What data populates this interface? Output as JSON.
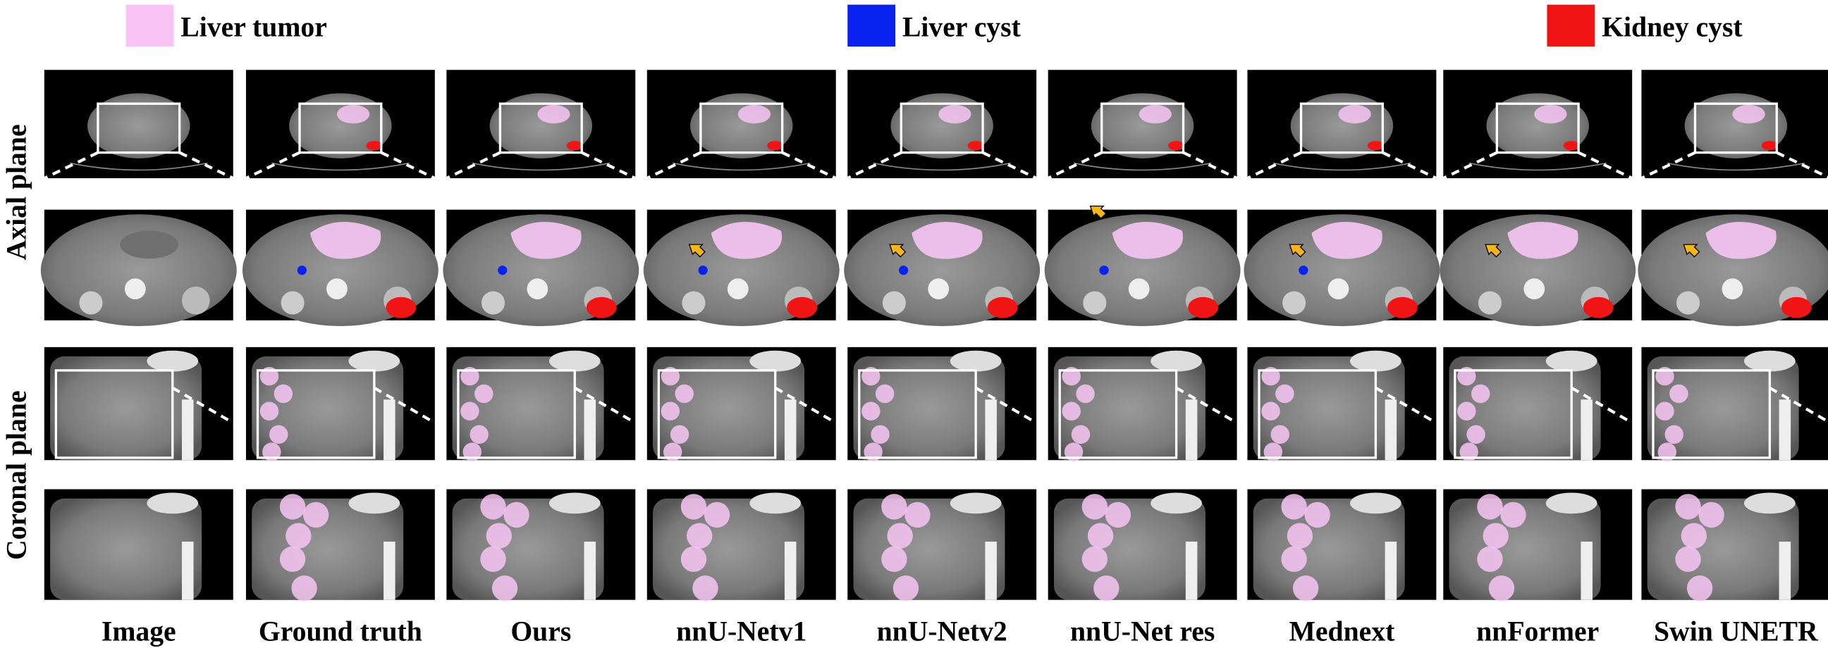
{
  "legend": [
    {
      "label": "Liver tumor",
      "color": "#f7c4f5"
    },
    {
      "label": "Liver cyst",
      "color": "#0a22f0"
    },
    {
      "label": "Kidney cyst",
      "color": "#f01414"
    }
  ],
  "row_labels": [
    "Axial plane",
    "Coronal plane"
  ],
  "column_labels": [
    "Image",
    "Ground truth",
    "Ours",
    "nnU-Netv1",
    "nnU-Netv2",
    "nnU-Net res",
    "Mednext",
    "nnFormer",
    "Swin UNETR"
  ]
}
